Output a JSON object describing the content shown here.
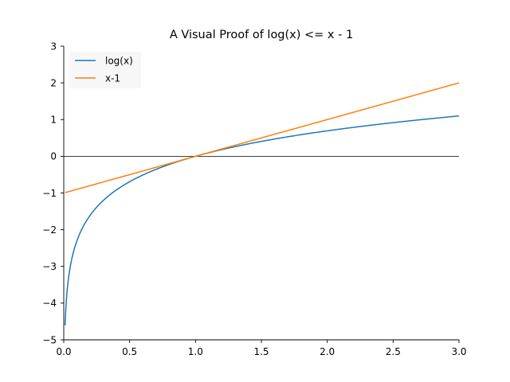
{
  "chart_data": {
    "type": "line",
    "title": "A Visual Proof of log(x) <= x - 1",
    "xlabel": "",
    "ylabel": "",
    "xlim": [
      0.0,
      3.0
    ],
    "ylim": [
      -5,
      3
    ],
    "x_ticks": [
      0.0,
      0.5,
      1.0,
      1.5,
      2.0,
      2.5,
      3.0
    ],
    "x_tick_labels": [
      "0.0",
      "0.5",
      "1.0",
      "1.5",
      "2.0",
      "2.5",
      "3.0"
    ],
    "y_ticks": [
      -5,
      -4,
      -3,
      -2,
      -1,
      0,
      1,
      2,
      3
    ],
    "y_tick_labels": [
      "−5",
      "−4",
      "−3",
      "−2",
      "−1",
      "0",
      "1",
      "2",
      "3"
    ],
    "grid": false,
    "legend_position": "top-left",
    "reference_line_y": 0,
    "x_start": 0.01,
    "x_end": 3.0,
    "series": [
      {
        "name": "log(x)",
        "function": "log",
        "color": "#1f77b4"
      },
      {
        "name": "x-1",
        "function": "x-1",
        "color": "#ff7f0e"
      }
    ]
  }
}
